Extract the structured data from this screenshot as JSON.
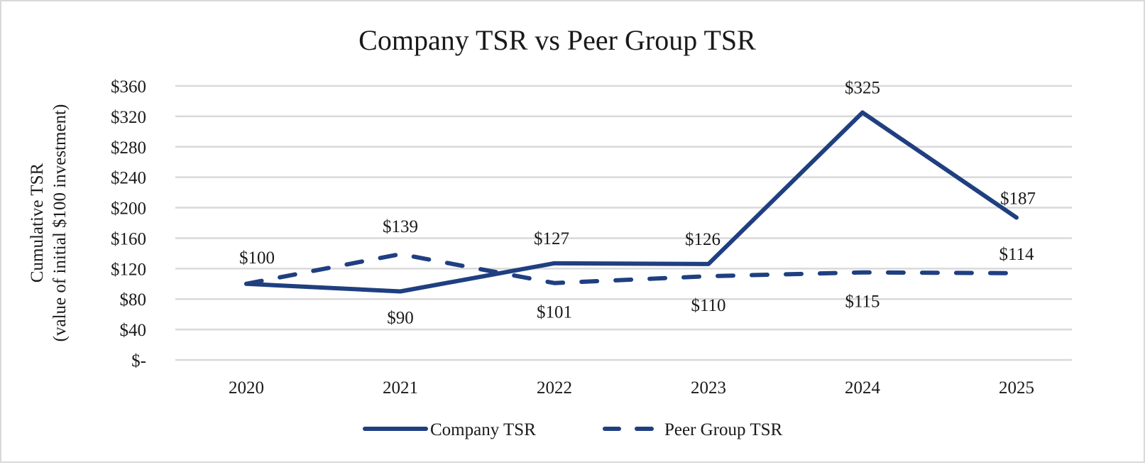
{
  "chart_data": {
    "type": "line",
    "title": "Company TSR vs Peer Group TSR",
    "xlabel": "",
    "ylabel": [
      "Cumulative TSR",
      "(value of initial $100 investment)"
    ],
    "categories": [
      "2020",
      "2021",
      "2022",
      "2023",
      "2024",
      "2025"
    ],
    "ylim": [
      0,
      360
    ],
    "yticks": [
      0,
      40,
      80,
      120,
      160,
      200,
      240,
      280,
      320,
      360
    ],
    "ytick_labels": [
      "$-",
      "$40",
      "$80",
      "$120",
      "$160",
      "$200",
      "$240",
      "$280",
      "$320",
      "$360"
    ],
    "grid": true,
    "legend_position": "bottom",
    "series": [
      {
        "name": "Company TSR",
        "style": "solid",
        "color": "#1f3f80",
        "values": [
          100,
          90,
          127,
          126,
          325,
          187
        ],
        "labels": [
          "$100",
          "$90",
          "$127",
          "$126",
          "$325",
          "$187"
        ]
      },
      {
        "name": "Peer Group TSR",
        "style": "dashed",
        "color": "#1f3f80",
        "values": [
          100,
          139,
          101,
          110,
          115,
          114
        ],
        "labels": [
          "",
          "$139",
          "$101",
          "$110",
          "$115",
          "$114"
        ]
      }
    ]
  }
}
